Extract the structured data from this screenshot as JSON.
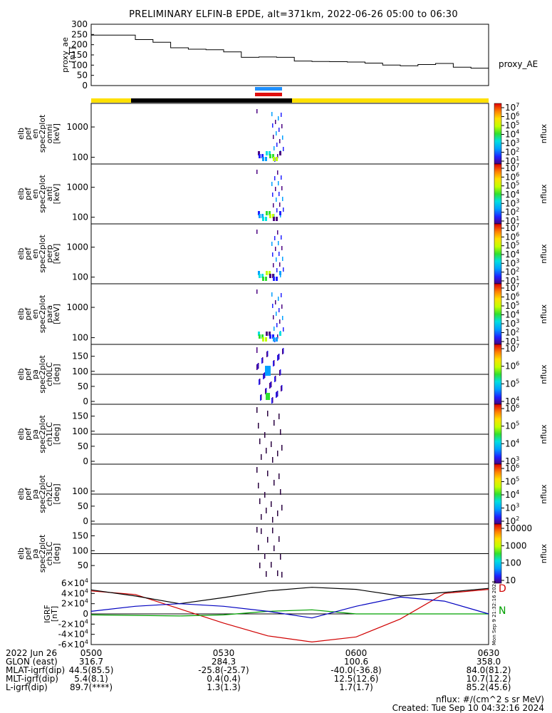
{
  "title": "PRELIMINARY ELFIN-B EPDE, alt=371km, 2022-06-26 05:00 to 06:30",
  "colors": {
    "yellow": "#ffe000",
    "black": "#000000",
    "blue": "#1e90ff",
    "red": "#e01010",
    "ae_line": "#000000",
    "grf_d": "#d00000",
    "grf_n": "#00a000",
    "grf_blue": "#0000c0",
    "grf_black": "#000000"
  },
  "ae_panel": {
    "ylabel_lines": [
      "proxy_ae",
      "[nT]"
    ],
    "yticks": [
      "0",
      "50",
      "100",
      "150",
      "200",
      "250",
      "300"
    ],
    "series_label": "proxy_AE"
  },
  "spec_panels": [
    {
      "ylabel_lines": [
        "elb",
        "pef",
        "en",
        "spec2plot",
        "omni",
        "[keV]"
      ],
      "yticks": [
        "100",
        "1000"
      ],
      "cbar_ticks": [
        "10^7",
        "10^6",
        "10^5",
        "10^4",
        "10^3",
        "10^2",
        "10^1"
      ],
      "cbar_label": "nflux"
    },
    {
      "ylabel_lines": [
        "elb",
        "pef",
        "en",
        "spec2plot",
        "anti",
        "[keV]"
      ],
      "yticks": [
        "100",
        "1000"
      ],
      "cbar_ticks": [
        "10^7",
        "10^6",
        "10^5",
        "10^4",
        "10^3",
        "10^2",
        "10^1"
      ],
      "cbar_label": "nflux"
    },
    {
      "ylabel_lines": [
        "elb",
        "pef",
        "en",
        "spec2plot",
        "perp",
        "[keV]"
      ],
      "yticks": [
        "100",
        "1000"
      ],
      "cbar_ticks": [
        "10^7",
        "10^6",
        "10^5",
        "10^4",
        "10^3",
        "10^2",
        "10^1"
      ],
      "cbar_label": "nflux"
    },
    {
      "ylabel_lines": [
        "elb",
        "pef",
        "en",
        "spec2plot",
        "para",
        "[keV]"
      ],
      "yticks": [
        "100",
        "1000"
      ],
      "cbar_ticks": [
        "10^7",
        "10^6",
        "10^5",
        "10^4",
        "10^3",
        "10^2",
        "10^1"
      ],
      "cbar_label": "nflux"
    }
  ],
  "pa_panels": [
    {
      "ylabel_lines": [
        "elb",
        "pef",
        "pa",
        "spec2plot",
        "ch0LC",
        "[deg]"
      ],
      "yticks": [
        "0",
        "50",
        "100",
        "150"
      ],
      "cbar_ticks": [
        "10^7",
        "10^6",
        "10^5",
        "10^4"
      ],
      "cbar_label": "nflux"
    },
    {
      "ylabel_lines": [
        "elb",
        "pef",
        "pa",
        "spec2plot",
        "ch1LC",
        "[deg]"
      ],
      "yticks": [
        "0",
        "50",
        "100",
        "150"
      ],
      "cbar_ticks": [
        "10^6",
        "10^5",
        "10^4",
        "10^3"
      ],
      "cbar_label": "nflux"
    },
    {
      "ylabel_lines": [
        "elb",
        "pef",
        "pa",
        "spec2plot",
        "ch2LC",
        "[deg]"
      ],
      "yticks": [
        "0",
        "50",
        "100"
      ],
      "cbar_ticks": [
        "10^6",
        "10^5",
        "10^4",
        "10^3",
        "10^2"
      ],
      "cbar_label": "nflux"
    },
    {
      "ylabel_lines": [
        "elb",
        "pef",
        "pa",
        "spec2plot",
        "ch3LC",
        "[deg]"
      ],
      "yticks": [
        "50",
        "100",
        "150"
      ],
      "cbar_ticks": [
        "10000",
        "1000",
        "100",
        "10"
      ],
      "cbar_label": "nflux"
    }
  ],
  "grf_panel": {
    "ylabel_lines": [
      "IGRF",
      "[nT]"
    ],
    "yticks": [
      "-6×10^4",
      "-4×10^4",
      "-2×10^4",
      "0",
      "2×10^4",
      "4×10^4",
      "6×10^4"
    ],
    "labels": [
      "D",
      "N"
    ],
    "side_note": "Mon Sep  9 21:32:16 2024"
  },
  "footer": {
    "rows": [
      {
        "label": "2022 Jun 26",
        "values": [
          "0500",
          "0530",
          "0600",
          "0630"
        ]
      },
      {
        "label": "GLON (east)",
        "values": [
          "316.7",
          "284.3",
          "100.6",
          "358.0"
        ]
      },
      {
        "label": "MLAT-igrf(dip)",
        "values": [
          "44.5(85.5)",
          "-25.8(-25.7)",
          "-40.0(-36.8)",
          "84.0(81.2)"
        ]
      },
      {
        "label": "MLT-igrf(dip)",
        "values": [
          "5.4(8.1)",
          "0.4(0.4)",
          "12.5(12.6)",
          "10.7(12.2)"
        ]
      },
      {
        "label": "L-igrf(dip)",
        "values": [
          "89.7(****)",
          "1.3(1.3)",
          "1.7(1.7)",
          "85.2(45.6)"
        ]
      }
    ],
    "note_units": "nflux: #/(cm^2 s sr MeV)",
    "note_created": "Created: Tue Sep 10 04:32:16 2024"
  },
  "chart_data": [
    {
      "type": "line",
      "title": "PRELIMINARY ELFIN-B EPDE, alt=371km, 2022-06-26 05:00 to 06:30",
      "xlabel": "",
      "ylabel": "proxy_ae [nT]",
      "ylim": [
        0,
        300
      ],
      "x_minutes": [
        0,
        6,
        10,
        14,
        18,
        22,
        26,
        30,
        34,
        38,
        42,
        46,
        50,
        54,
        58,
        62,
        66,
        70,
        74,
        78,
        82,
        86,
        90
      ],
      "series": [
        {
          "name": "proxy_AE",
          "values": [
            247,
            247,
            225,
            212,
            185,
            178,
            175,
            165,
            138,
            140,
            138,
            120,
            118,
            117,
            115,
            110,
            100,
            97,
            103,
            108,
            90,
            85,
            95
          ]
        }
      ]
    },
    {
      "type": "heatmap",
      "ylabel": "elb pef en spec2plot omni [keV]",
      "yticks": [
        100,
        1000
      ],
      "zlabel": "nflux",
      "zrange": [
        "10^1",
        "10^7"
      ]
    },
    {
      "type": "line",
      "ylabel": "IGRF [nT]",
      "ylim": [
        -60000,
        60000
      ],
      "x_minutes": [
        0,
        10,
        20,
        30,
        40,
        50,
        60,
        70,
        80,
        90
      ],
      "series": [
        {
          "name": "D",
          "values": [
            45000,
            38000,
            10000,
            -18000,
            -43000,
            -55000,
            -45000,
            -10000,
            40000,
            48000
          ]
        },
        {
          "name": "N",
          "values": [
            -2000,
            -3000,
            -4000,
            -2000,
            5000,
            8000,
            0,
            0,
            0,
            0
          ]
        },
        {
          "values": [
            47000,
            35000,
            20000,
            32000,
            45000,
            52000,
            48000,
            35000,
            42000,
            50000
          ]
        },
        {
          "values": [
            5000,
            15000,
            20000,
            15000,
            5000,
            -8000,
            15000,
            33000,
            25000,
            0
          ]
        }
      ]
    }
  ]
}
